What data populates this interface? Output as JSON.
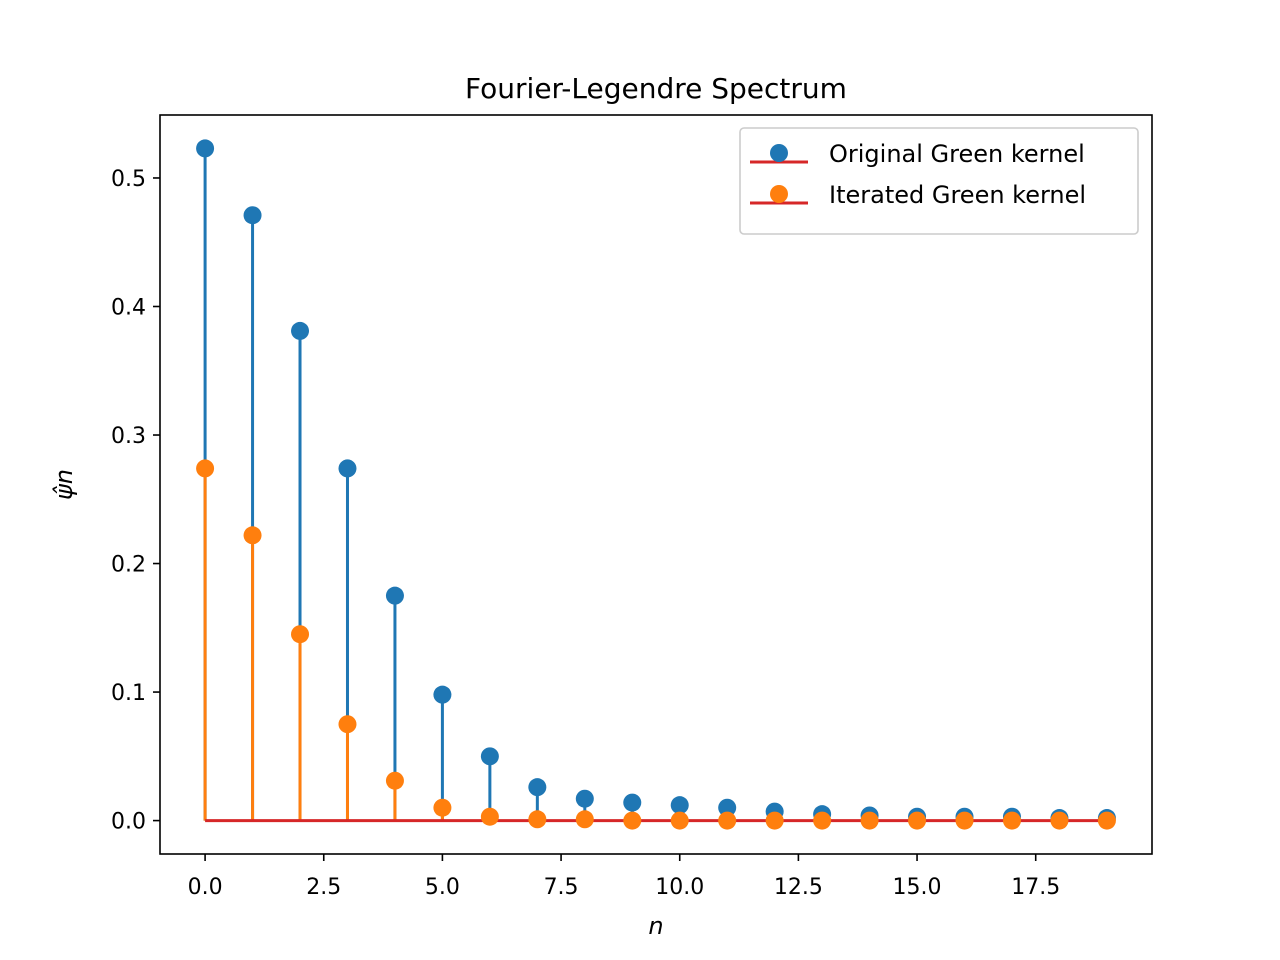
{
  "chart_data": {
    "type": "stem",
    "title": "Fourier-Legendre Spectrum",
    "xlabel": "n",
    "ylabel": "ψ̂n",
    "xlim": [
      -0.95,
      19.95
    ],
    "ylim": [
      -0.026,
      0.549
    ],
    "x_ticks": [
      0.0,
      2.5,
      5.0,
      7.5,
      10.0,
      12.5,
      15.0,
      17.5
    ],
    "x_tick_labels": [
      "0.0",
      "2.5",
      "5.0",
      "7.5",
      "10.0",
      "12.5",
      "15.0",
      "17.5"
    ],
    "y_ticks": [
      0.0,
      0.1,
      0.2,
      0.3,
      0.4,
      0.5
    ],
    "y_tick_labels": [
      "0.0",
      "0.1",
      "0.2",
      "0.3",
      "0.4",
      "0.5"
    ],
    "grid": false,
    "legend_placement": "top-right",
    "baseline": {
      "value": 0.0,
      "color": "#d62728"
    },
    "x": [
      0,
      1,
      2,
      3,
      4,
      5,
      6,
      7,
      8,
      9,
      10,
      11,
      12,
      13,
      14,
      15,
      16,
      17,
      18,
      19
    ],
    "series": [
      {
        "name": "Original Green kernel",
        "color": "#1f77b4",
        "values": [
          0.523,
          0.471,
          0.381,
          0.274,
          0.175,
          0.098,
          0.05,
          0.026,
          0.017,
          0.014,
          0.012,
          0.01,
          0.007,
          0.005,
          0.004,
          0.003,
          0.003,
          0.003,
          0.002,
          0.002
        ]
      },
      {
        "name": "Iterated Green kernel",
        "color": "#ff7f0e",
        "values": [
          0.274,
          0.222,
          0.145,
          0.075,
          0.031,
          0.01,
          0.003,
          0.001,
          0.001,
          0.0,
          0.0,
          0.0,
          0.0,
          0.0,
          0.0,
          0.0,
          0.0,
          0.0,
          0.0,
          0.0
        ]
      }
    ]
  }
}
